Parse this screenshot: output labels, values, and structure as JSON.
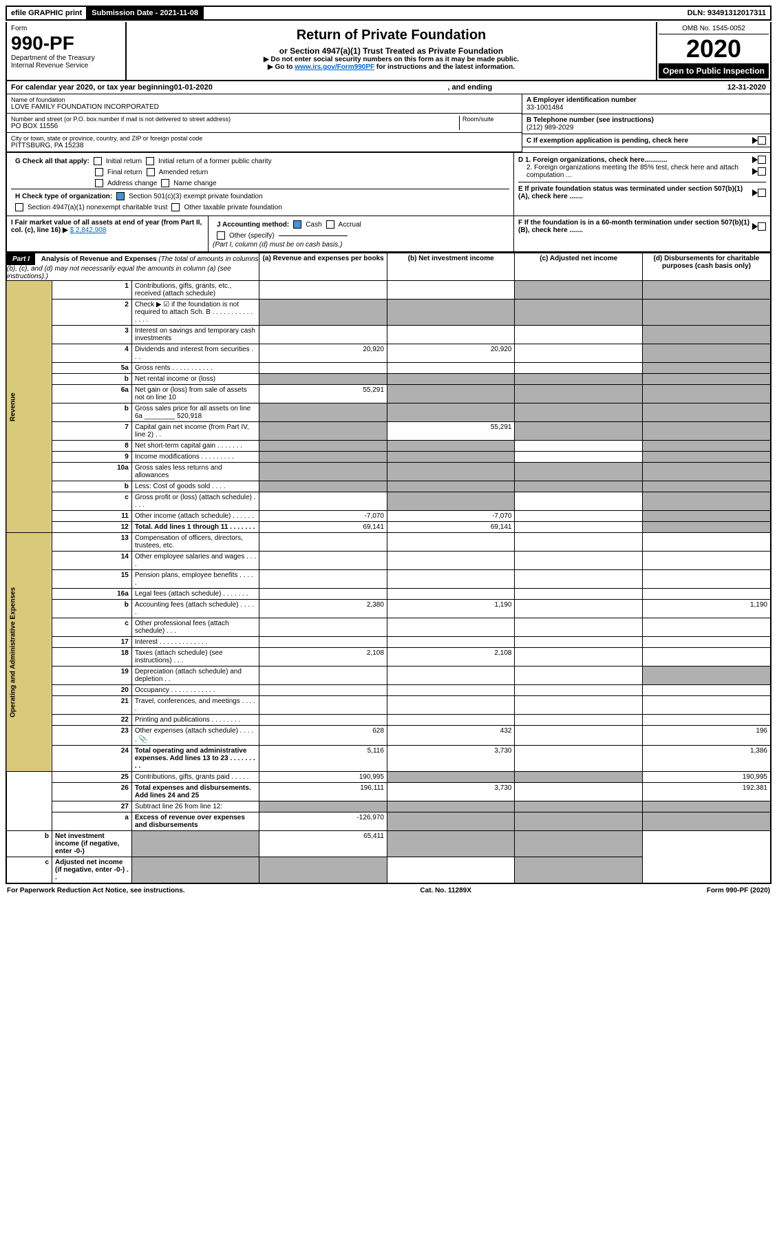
{
  "top": {
    "efile": "efile GRAPHIC print",
    "submission": "Submission Date - 2021-11-08",
    "dln": "DLN: 93491312017311"
  },
  "header": {
    "form_label": "Form",
    "form_no": "990-PF",
    "dept1": "Department of the Treasury",
    "dept2": "Internal Revenue Service",
    "title": "Return of Private Foundation",
    "subtitle": "or Section 4947(a)(1) Trust Treated as Private Foundation",
    "note1": "▶ Do not enter social security numbers on this form as it may be made public.",
    "note2_pre": "▶ Go to ",
    "note2_link": "www.irs.gov/Form990PF",
    "note2_post": " for instructions and the latest information.",
    "omb": "OMB No. 1545-0052",
    "year": "2020",
    "open": "Open to Public Inspection"
  },
  "calyear": {
    "prefix": "For calendar year 2020, or tax year beginning ",
    "begin": "01-01-2020",
    "mid": " , and ending ",
    "end": "12-31-2020"
  },
  "ident": {
    "name_label": "Name of foundation",
    "name": "LOVE FAMILY FOUNDATION INCORPORATED",
    "addr_label": "Number and street (or P.O. box number if mail is not delivered to street address)",
    "addr": "PO BOX 11556",
    "room_label": "Room/suite",
    "city_label": "City or town, state or province, country, and ZIP or foreign postal code",
    "city": "PITTSBURG, PA  15238",
    "a_label": "A Employer identification number",
    "a_val": "33-1001484",
    "b_label": "B Telephone number (see instructions)",
    "b_val": "(212) 989-2029",
    "c_label": "C If exemption application is pending, check here",
    "d1": "D 1. Foreign organizations, check here............",
    "d2": "2. Foreign organizations meeting the 85% test, check here and attach computation ...",
    "e": "E  If private foundation status was terminated under section 507(b)(1)(A), check here .......",
    "f": "F  If the foundation is in a 60-month termination under section 507(b)(1)(B), check here .......",
    "g_label": "G Check all that apply:",
    "g_opts": [
      "Initial return",
      "Final return",
      "Address change",
      "Initial return of a former public charity",
      "Amended return",
      "Name change"
    ],
    "h_label": "H Check type of organization:",
    "h1": "Section 501(c)(3) exempt private foundation",
    "h2": "Section 4947(a)(1) nonexempt charitable trust",
    "h3": "Other taxable private foundation",
    "i_label": "I Fair market value of all assets at end of year (from Part II, col. (c), line 16) ▶",
    "i_val": "$  2,842,908",
    "j_label": "J Accounting method:",
    "j_cash": "Cash",
    "j_accrual": "Accrual",
    "j_other": "Other (specify)",
    "j_note": "(Part I, column (d) must be on cash basis.)"
  },
  "part1": {
    "label": "Part I",
    "title": "Analysis of Revenue and Expenses",
    "title_note": "(The total of amounts in columns (b), (c), and (d) may not necessarily equal the amounts in column (a) (see instructions).)",
    "col_a": "(a) Revenue and expenses per books",
    "col_b": "(b) Net investment income",
    "col_c": "(c) Adjusted net income",
    "col_d": "(d) Disbursements for charitable purposes (cash basis only)"
  },
  "sides": {
    "revenue": "Revenue",
    "expenses": "Operating and Administrative Expenses"
  },
  "rows": [
    {
      "n": "1",
      "d": "Contributions, gifts, grants, etc., received (attach schedule)",
      "a": "",
      "b": "",
      "c": "s",
      "ds": "s"
    },
    {
      "n": "2",
      "d": "Check ▶ ☑ if the foundation is not required to attach Sch. B   . . . . . . . . . . . . . . .",
      "a": "s",
      "b": "s",
      "c": "s",
      "ds": "s"
    },
    {
      "n": "3",
      "d": "Interest on savings and temporary cash investments",
      "a": "",
      "b": "",
      "c": "",
      "ds": "s"
    },
    {
      "n": "4",
      "d": "Dividends and interest from securities   . . .",
      "a": "20,920",
      "b": "20,920",
      "c": "",
      "ds": "s"
    },
    {
      "n": "5a",
      "d": "Gross rents   . . . . . . . . . . .",
      "a": "",
      "b": "",
      "c": "",
      "ds": "s"
    },
    {
      "n": "b",
      "d": "Net rental income or (loss)  ",
      "a": "s",
      "b": "s",
      "c": "s",
      "ds": "s"
    },
    {
      "n": "6a",
      "d": "Net gain or (loss) from sale of assets not on line 10",
      "a": "55,291",
      "b": "s",
      "c": "s",
      "ds": "s"
    },
    {
      "n": "b",
      "d": "Gross sales price for all assets on line 6a ________ 520,918",
      "a": "s",
      "b": "s",
      "c": "s",
      "ds": "s"
    },
    {
      "n": "7",
      "d": "Capital gain net income (from Part IV, line 2)   . .",
      "a": "s",
      "b": "55,291",
      "c": "s",
      "ds": "s"
    },
    {
      "n": "8",
      "d": "Net short-term capital gain   . . . . . . .",
      "a": "s",
      "b": "s",
      "c": "",
      "ds": "s"
    },
    {
      "n": "9",
      "d": "Income modifications   . . . . . . . . .",
      "a": "s",
      "b": "s",
      "c": "",
      "ds": "s"
    },
    {
      "n": "10a",
      "d": "Gross sales less returns and allowances",
      "a": "s",
      "b": "s",
      "c": "s",
      "ds": "s"
    },
    {
      "n": "b",
      "d": "Less: Cost of goods sold   . . . .",
      "a": "s",
      "b": "s",
      "c": "s",
      "ds": "s"
    },
    {
      "n": "c",
      "d": "Gross profit or (loss) (attach schedule)   . . . .",
      "a": "",
      "b": "s",
      "c": "",
      "ds": "s"
    },
    {
      "n": "11",
      "d": "Other income (attach schedule)   . . . . . .",
      "a": "-7,070",
      "b": "-7,070",
      "c": "",
      "ds": "s"
    },
    {
      "n": "12",
      "d": "Total. Add lines 1 through 11   . . . . . . .",
      "bold": true,
      "a": "69,141",
      "b": "69,141",
      "c": "",
      "ds": "s"
    },
    {
      "n": "13",
      "d": "Compensation of officers, directors, trustees, etc.",
      "a": "",
      "b": "",
      "c": "",
      "ds": ""
    },
    {
      "n": "14",
      "d": "Other employee salaries and wages   . . . .",
      "a": "",
      "b": "",
      "c": "",
      "ds": ""
    },
    {
      "n": "15",
      "d": "Pension plans, employee benefits   . . . . .",
      "a": "",
      "b": "",
      "c": "",
      "ds": ""
    },
    {
      "n": "16a",
      "d": "Legal fees (attach schedule)   . . . . . . .",
      "a": "",
      "b": "",
      "c": "",
      "ds": ""
    },
    {
      "n": "b",
      "d": "Accounting fees (attach schedule)   . . . . .",
      "a": "2,380",
      "b": "1,190",
      "c": "",
      "ds": "1,190"
    },
    {
      "n": "c",
      "d": "Other professional fees (attach schedule)   . . .",
      "a": "",
      "b": "",
      "c": "",
      "ds": ""
    },
    {
      "n": "17",
      "d": "Interest   . . . . . . . . . . . . .",
      "a": "",
      "b": "",
      "c": "",
      "ds": ""
    },
    {
      "n": "18",
      "d": "Taxes (attach schedule) (see instructions)   . . .",
      "a": "2,108",
      "b": "2,108",
      "c": "",
      "ds": ""
    },
    {
      "n": "19",
      "d": "Depreciation (attach schedule) and depletion   . .",
      "a": "",
      "b": "",
      "c": "",
      "ds": "s"
    },
    {
      "n": "20",
      "d": "Occupancy   . . . . . . . . . . . .",
      "a": "",
      "b": "",
      "c": "",
      "ds": ""
    },
    {
      "n": "21",
      "d": "Travel, conferences, and meetings   . . . . .",
      "a": "",
      "b": "",
      "c": "",
      "ds": ""
    },
    {
      "n": "22",
      "d": "Printing and publications   . . . . . . . .",
      "a": "",
      "b": "",
      "c": "",
      "ds": ""
    },
    {
      "n": "23",
      "d": "Other expenses (attach schedule)   . . . . .",
      "icon": true,
      "a": "628",
      "b": "432",
      "c": "",
      "ds": "196"
    },
    {
      "n": "24",
      "d": "Total operating and administrative expenses. Add lines 13 to 23   . . . . . . . . .",
      "bold": true,
      "a": "5,116",
      "b": "3,730",
      "c": "",
      "ds": "1,386"
    },
    {
      "n": "25",
      "d": "Contributions, gifts, grants paid   . . . . .",
      "a": "190,995",
      "b": "s",
      "c": "s",
      "ds": "190,995"
    },
    {
      "n": "26",
      "d": "Total expenses and disbursements. Add lines 24 and 25",
      "bold": true,
      "a": "196,111",
      "b": "3,730",
      "c": "",
      "ds": "192,381"
    },
    {
      "n": "27",
      "d": "Subtract line 26 from line 12:",
      "a": "s",
      "b": "s",
      "c": "s",
      "ds": "s"
    },
    {
      "n": "a",
      "d": "Excess of revenue over expenses and disbursements",
      "bold": true,
      "a": "-126,970",
      "b": "s",
      "c": "s",
      "ds": "s"
    },
    {
      "n": "b",
      "d": "Net investment income (if negative, enter -0-)",
      "bold": true,
      "a": "s",
      "b": "65,411",
      "c": "s",
      "ds": "s"
    },
    {
      "n": "c",
      "d": "Adjusted net income (if negative, enter -0-)   . .",
      "bold": true,
      "a": "s",
      "b": "s",
      "c": "",
      "ds": "s"
    }
  ],
  "footer": {
    "left": "For Paperwork Reduction Act Notice, see instructions.",
    "mid": "Cat. No. 11289X",
    "right": "Form 990-PF (2020)"
  }
}
